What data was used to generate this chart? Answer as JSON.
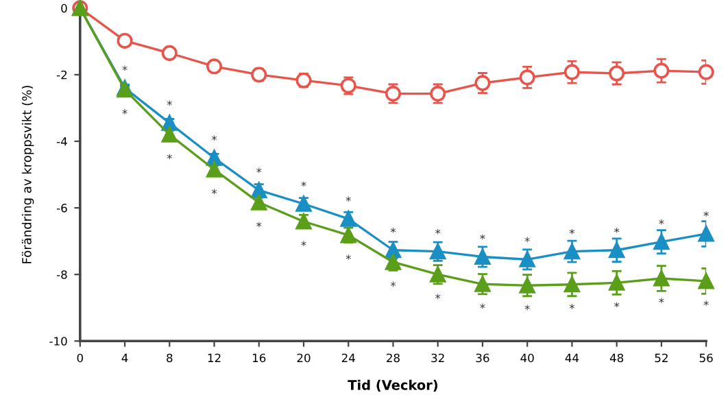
{
  "chart_data": {
    "type": "line",
    "xlabel": "Tid (Veckor)",
    "ylabel": "Förändring av kroppsvikt (%)",
    "x": [
      0,
      4,
      8,
      12,
      16,
      20,
      24,
      28,
      32,
      36,
      40,
      44,
      48,
      52,
      56
    ],
    "series": [
      {
        "color": "#e8534a",
        "marker": "circle",
        "values": [
          0,
          -0.98,
          -1.35,
          -1.75,
          -2.0,
          -2.17,
          -2.33,
          -2.57,
          -2.57,
          -2.25,
          -2.08,
          -1.92,
          -1.96,
          -1.88,
          -1.92
        ],
        "errors": [
          null,
          0.08,
          0.1,
          0.15,
          0.18,
          0.2,
          0.25,
          0.28,
          0.28,
          0.3,
          0.32,
          0.33,
          0.33,
          0.35,
          0.35
        ]
      },
      {
        "color": "#1a8fc4",
        "marker": "triangle",
        "values": [
          0,
          -2.4,
          -3.45,
          -4.5,
          -5.47,
          -5.88,
          -6.33,
          -7.27,
          -7.31,
          -7.47,
          -7.55,
          -7.31,
          -7.27,
          -7.02,
          -6.78
        ],
        "errors": [
          null,
          0.1,
          0.12,
          0.12,
          0.18,
          0.18,
          0.2,
          0.25,
          0.28,
          0.3,
          0.3,
          0.32,
          0.35,
          0.35,
          0.38
        ]
      },
      {
        "color": "#5a9e1a",
        "marker": "triangle",
        "values": [
          0,
          -2.45,
          -3.8,
          -4.85,
          -5.84,
          -6.41,
          -6.82,
          -7.63,
          -8.0,
          -8.29,
          -8.33,
          -8.3,
          -8.25,
          -8.12,
          -8.2
        ],
        "errors": [
          null,
          0.1,
          0.12,
          0.12,
          0.15,
          0.2,
          0.22,
          0.25,
          0.28,
          0.3,
          0.32,
          0.35,
          0.35,
          0.38,
          0.38
        ]
      }
    ],
    "annotations": [
      {
        "text": "*",
        "x": 4,
        "y": -2.4
      },
      {
        "text": "*",
        "x": 8,
        "y": -3.45
      },
      {
        "text": "*",
        "x": 12,
        "y": -4.5
      },
      {
        "text": "*",
        "x": 16,
        "y": -5.47
      },
      {
        "text": "*",
        "x": 20,
        "y": -5.88
      },
      {
        "text": "*",
        "x": 24,
        "y": -6.33
      },
      {
        "text": "*",
        "x": 28,
        "y": -7.27
      },
      {
        "text": "*",
        "x": 32,
        "y": -7.31
      },
      {
        "text": "*",
        "x": 36,
        "y": -7.47
      },
      {
        "text": "*",
        "x": 40,
        "y": -7.55
      },
      {
        "text": "*",
        "x": 44,
        "y": -7.31
      },
      {
        "text": "*",
        "x": 48,
        "y": -7.27
      },
      {
        "text": "*",
        "x": 52,
        "y": -7.02
      },
      {
        "text": "*",
        "x": 56,
        "y": -6.78
      },
      {
        "text": "*",
        "x": 4,
        "y": -2.45
      },
      {
        "text": "*",
        "x": 8,
        "y": -3.8
      },
      {
        "text": "*",
        "x": 12,
        "y": -4.85
      },
      {
        "text": "*",
        "x": 16,
        "y": -5.84
      },
      {
        "text": "*",
        "x": 20,
        "y": -6.41
      },
      {
        "text": "*",
        "x": 24,
        "y": -6.82
      },
      {
        "text": "*",
        "x": 28,
        "y": -7.63
      },
      {
        "text": "*",
        "x": 32,
        "y": -8.0
      },
      {
        "text": "*",
        "x": 36,
        "y": -8.29
      },
      {
        "text": "*",
        "x": 40,
        "y": -8.33
      },
      {
        "text": "*",
        "x": 44,
        "y": -8.3
      },
      {
        "text": "*",
        "x": 48,
        "y": -8.25
      },
      {
        "text": "*",
        "x": 52,
        "y": -8.12
      },
      {
        "text": "*",
        "x": 56,
        "y": -8.2
      }
    ],
    "xlim": [
      0,
      56
    ],
    "xticks": [
      0,
      4,
      8,
      12,
      16,
      20,
      24,
      28,
      32,
      36,
      40,
      44,
      48,
      52,
      56
    ],
    "ylim": [
      -10,
      0
    ],
    "yticks": [
      -10,
      -8,
      -6,
      -4,
      -2,
      0
    ],
    "grid": false,
    "legend": false
  }
}
